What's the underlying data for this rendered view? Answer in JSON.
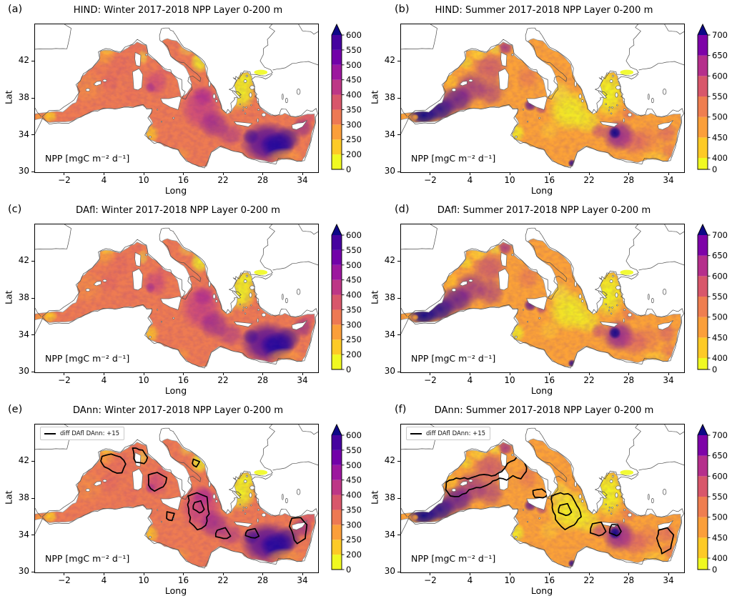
{
  "axis": {
    "xlabel": "Long",
    "ylabel": "Lat",
    "xtick_labels": [
      "−2",
      "4",
      "10",
      "16",
      "22",
      "28",
      "34"
    ],
    "xtick_lons": [
      -2,
      4,
      10,
      16,
      22,
      28,
      34
    ],
    "ytick_labels": [
      "42",
      "38",
      "34",
      "30"
    ],
    "ytick_lats": [
      42,
      38,
      34,
      30
    ]
  },
  "annotation_label": "NPP [mgC m⁻² d⁻¹]",
  "legend_label": "diff DAfl DAnn: +15",
  "panels": [
    {
      "key": "a",
      "label": "(a)",
      "title": "HIND: Winter 2017-2018 NPP Layer 0-200 m",
      "model": "HIND",
      "season": "Winter 2017-2018",
      "colorbar": "winter",
      "contours": false
    },
    {
      "key": "b",
      "label": "(b)",
      "title": "HIND: Summer 2017-2018 NPP Layer 0-200 m",
      "model": "HIND",
      "season": "Summer 2017-2018",
      "colorbar": "summer",
      "contours": false
    },
    {
      "key": "c",
      "label": "(c)",
      "title": "DAfl: Winter 2017-2018 NPP Layer 0-200 m",
      "model": "DAfl",
      "season": "Winter 2017-2018",
      "colorbar": "winter",
      "contours": false
    },
    {
      "key": "d",
      "label": "(d)",
      "title": "DAfl: Summer 2017-2018 NPP Layer 0-200 m",
      "model": "DAfl",
      "season": "Summer 2017-2018",
      "colorbar": "summer",
      "contours": false
    },
    {
      "key": "e",
      "label": "(e)",
      "title": "DAnn: Winter 2017-2018 NPP Layer 0-200 m",
      "model": "DAnn",
      "season": "Winter 2017-2018",
      "colorbar": "winter",
      "contours": true
    },
    {
      "key": "f",
      "label": "(f)",
      "title": "DAnn: Summer 2017-2018 NPP Layer 0-200 m",
      "model": "DAnn",
      "season": "Summer 2017-2018",
      "colorbar": "summer",
      "contours": true
    }
  ],
  "chart_data": {
    "type": "heatmap",
    "subtype": "geographic map, filled NPP field over the Mediterranean Sea",
    "figure_description": "Six-panel comparison of Net Primary Production (NPP), depth layer 0-200 m, for Winter and Summer 2017-2018 from three model runs: HIND (hindcast), DAfl and DAnn (data assimilation runs). Panels (e,f) overlay black contour lines where DAfl minus DAnn = +15.",
    "region": "Mediterranean Sea",
    "units": "mgC m⁻² d⁻¹",
    "colormap": "plasma reversed (yellow = low, orange/magenta = mid, dark blue = high, arrow = over-range)",
    "axes": {
      "xlabel": "Long",
      "ylabel": "Lat",
      "x_range": [
        -6.5,
        36.3
      ],
      "y_range": [
        30,
        46.05
      ],
      "xticks": [
        -2,
        4,
        10,
        16,
        22,
        28,
        34
      ],
      "yticks": [
        30,
        34,
        38,
        42
      ],
      "grid": false
    },
    "legend": {
      "panels": [
        "e",
        "f"
      ],
      "label": "diff DAfl DAnn: +15",
      "position": "upper left"
    },
    "colorbars": {
      "winter": {
        "boundaries": [
          0,
          200,
          250,
          300,
          350,
          400,
          450,
          500,
          550,
          600
        ],
        "tick_labels_top_to_bottom": [
          "600",
          "550",
          "500",
          "450",
          "400",
          "350",
          "300",
          "250",
          "200",
          "0"
        ],
        "segment_colors_bottom_to_top": [
          "#f0f921",
          "#fdca26",
          "#fb9f3a",
          "#ed7953",
          "#d8576b",
          "#bd3786",
          "#9c179e",
          "#7201a8",
          "#46039f"
        ],
        "over_arrow_color": "#0d0887"
      },
      "summer": {
        "boundaries": [
          0,
          400,
          450,
          500,
          550,
          600,
          650,
          700
        ],
        "tick_labels_top_to_bottom": [
          "700",
          "650",
          "600",
          "550",
          "500",
          "450",
          "400",
          "0"
        ],
        "segment_colors_bottom_to_top": [
          "#f0f921",
          "#fdca26",
          "#fb9f3a",
          "#ef7e50",
          "#d8576b",
          "#b52f8c",
          "#7e03a8"
        ],
        "over_arrow_color": "#0d0887"
      }
    },
    "panels": [
      {
        "panel": "a",
        "model": "HIND",
        "season": "Winter 2017-2018",
        "colorbar": "winter",
        "contours": false,
        "approx_regional_npp": {
          "alboran_sea": 240,
          "western_mediterranean": 300,
          "gulf_of_lion": 260,
          "tyrrhenian_sea": 380,
          "adriatic_south": 170,
          "aegean_sea": 120,
          "ionian_sea": 430,
          "levantine_basin": 560,
          "gulf_of_gabes": 230,
          "egypt_coast": 280
        }
      },
      {
        "panel": "b",
        "model": "HIND",
        "season": "Summer 2017-2018",
        "colorbar": "summer",
        "contours": false,
        "approx_regional_npp": {
          "alboran_sea": 690,
          "western_mediterranean": 620,
          "gulf_of_lion": 450,
          "tyrrhenian_sea": 520,
          "adriatic_south": 400,
          "aegean_sea": 390,
          "ionian_sea": 400,
          "levantine_central": 640,
          "levantine_east": 480,
          "gulf_of_gabes": 380
        }
      },
      {
        "panel": "c",
        "model": "DAfl",
        "season": "Winter 2017-2018",
        "colorbar": "winter",
        "contours": false,
        "approx_regional_npp": {
          "alboran_sea": 240,
          "western_mediterranean": 300,
          "gulf_of_lion": 250,
          "tyrrhenian_sea": 370,
          "adriatic_south": 160,
          "aegean_sea": 120,
          "ionian_sea": 390,
          "levantine_basin": 480,
          "gulf_of_gabes": 230,
          "egypt_coast": 280
        }
      },
      {
        "panel": "d",
        "model": "DAfl",
        "season": "Summer 2017-2018",
        "colorbar": "summer",
        "contours": false,
        "approx_regional_npp": {
          "alboran_sea": 700,
          "western_mediterranean": 640,
          "gulf_of_lion": 440,
          "tyrrhenian_sea": 520,
          "adriatic_south": 390,
          "aegean_sea": 380,
          "ionian_sea": 390,
          "levantine_central": 660,
          "levantine_east": 470,
          "gulf_of_gabes": 380
        }
      },
      {
        "panel": "e",
        "model": "DAnn",
        "season": "Winter 2017-2018",
        "colorbar": "winter",
        "contours": true,
        "contour_legend": "diff DAfl DAnn: +15",
        "approx_regional_npp": {
          "alboran_sea": 240,
          "western_mediterranean": 300,
          "gulf_of_lion": 250,
          "tyrrhenian_sea": 370,
          "adriatic_south": 160,
          "aegean_sea": 120,
          "ionian_sea": 400,
          "levantine_basin": 500,
          "gulf_of_gabes": 230,
          "egypt_coast": 280
        }
      },
      {
        "panel": "f",
        "model": "DAnn",
        "season": "Summer 2017-2018",
        "colorbar": "summer",
        "contours": true,
        "contour_legend": "diff DAfl DAnn: +15",
        "approx_regional_npp": {
          "alboran_sea": 690,
          "western_mediterranean": 630,
          "gulf_of_lion": 450,
          "tyrrhenian_sea": 510,
          "adriatic_south": 390,
          "aegean_sea": 380,
          "ionian_sea": 400,
          "levantine_central": 630,
          "levantine_east": 470,
          "gulf_of_gabes": 380
        }
      }
    ]
  }
}
